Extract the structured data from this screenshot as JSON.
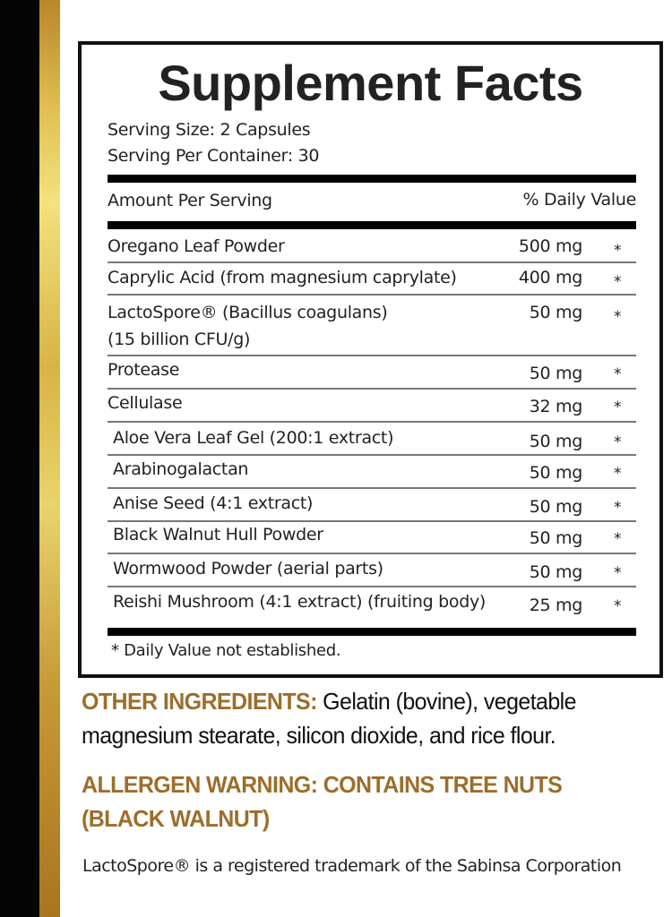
{
  "title": "Supplement Facts",
  "serving_size": "Serving Size: 2 Capsules",
  "servings_per_container": "Serving Per Container: 30",
  "header": {
    "amount_per_serving": "Amount Per Serving",
    "daily_value": "% Daily Value"
  },
  "ingredients": [
    {
      "name": "Oregano Leaf Powder",
      "amount": "500 mg",
      "dv": "*"
    },
    {
      "name": "Caprylic Acid (from magnesium caprylate)",
      "amount": "400 mg",
      "dv": "*"
    },
    {
      "name": "LactoSpore® (Bacillus coagulans)",
      "name_line2": "(15 billion CFU/g)",
      "amount": "50 mg",
      "dv": "*"
    },
    {
      "name": "Protease",
      "amount": "50 mg",
      "dv": "*"
    },
    {
      "name": "Cellulase",
      "amount": "32 mg",
      "dv": "*"
    },
    {
      "name": "Aloe Vera Leaf Gel (200:1 extract)",
      "amount": "50 mg",
      "dv": "*"
    },
    {
      "name": "Arabinogalactan",
      "amount": "50 mg",
      "dv": "*"
    },
    {
      "name": "Anise Seed (4:1 extract)",
      "amount": "50 mg",
      "dv": "*"
    },
    {
      "name": "Black Walnut Hull Powder",
      "amount": "50 mg",
      "dv": "*"
    },
    {
      "name": "Wormwood Powder (aerial parts)",
      "amount": "50 mg",
      "dv": "*"
    },
    {
      "name": "Reishi Mushroom (4:1 extract) (fruiting body)",
      "amount": "25 mg",
      "dv": "*"
    }
  ],
  "footnote": "* Daily Value not established.",
  "other_ingredients": {
    "label": "OTHER INGREDIENTS:",
    "text_line1": " Gelatin (bovine), vegetable",
    "text_line2": "magnesium stearate, silicon dioxide, and rice flour."
  },
  "allergen_warning": {
    "line1": "ALLERGEN WARNING: CONTAINS TREE NUTS",
    "line2": "(BLACK WALNUT)"
  },
  "trademark": "LactoSpore® is a registered trademark of the Sabinsa Corporation",
  "colors": {
    "gold_text": "#9c6e2a",
    "stripe_black": "#050505",
    "stripe_gold": "#e0c050"
  }
}
